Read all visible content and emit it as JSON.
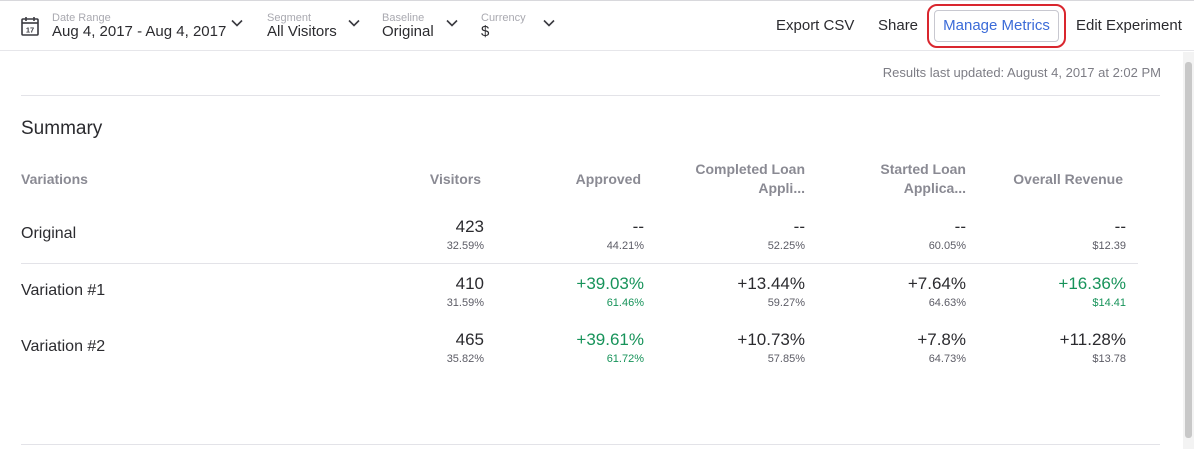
{
  "toolbar": {
    "date_range": {
      "label": "Date Range",
      "value": "Aug 4, 2017 - Aug 4, 2017",
      "icon": "calendar-icon",
      "day": "17"
    },
    "segment": {
      "label": "Segment",
      "value": "All Visitors"
    },
    "baseline": {
      "label": "Baseline",
      "value": "Original"
    },
    "currency": {
      "label": "Currency",
      "value": "$"
    },
    "export_label": "Export CSV",
    "share_label": "Share",
    "manage_label": "Manage Metrics",
    "edit_label": "Edit Experiment"
  },
  "results_updated": "Results last updated: August 4, 2017 at 2:02 PM",
  "summary": {
    "title": "Summary",
    "columns": {
      "variations": "Variations",
      "visitors": "Visitors",
      "approved": "Approved",
      "completed_line1": "Completed Loan",
      "completed_line2": "Appli...",
      "started_line1": "Started Loan",
      "started_line2": "Applica...",
      "revenue": "Overall Revenue"
    },
    "rows": [
      {
        "name": "Original",
        "visitors": {
          "main": "423",
          "sub": "32.59%"
        },
        "approved": {
          "main": "--",
          "sub": "44.21%"
        },
        "completed": {
          "main": "--",
          "sub": "52.25%"
        },
        "started": {
          "main": "--",
          "sub": "60.05%"
        },
        "revenue": {
          "main": "--",
          "sub": "$12.39"
        }
      },
      {
        "name": "Variation #1",
        "visitors": {
          "main": "410",
          "sub": "31.59%"
        },
        "approved": {
          "main": "+39.03%",
          "sub": "61.46%"
        },
        "completed": {
          "main": "+13.44%",
          "sub": "59.27%"
        },
        "started": {
          "main": "+7.64%",
          "sub": "64.63%"
        },
        "revenue": {
          "main": "+16.36%",
          "sub": "$14.41"
        }
      },
      {
        "name": "Variation #2",
        "visitors": {
          "main": "465",
          "sub": "35.82%"
        },
        "approved": {
          "main": "+39.61%",
          "sub": "61.72%"
        },
        "completed": {
          "main": "+10.73%",
          "sub": "57.85%"
        },
        "started": {
          "main": "+7.8%",
          "sub": "64.73%"
        },
        "revenue": {
          "main": "+11.28%",
          "sub": "$13.78"
        }
      }
    ]
  },
  "colors": {
    "accent": "#3b6bd8",
    "positive": "#17935a",
    "highlight": "#d9262e"
  }
}
